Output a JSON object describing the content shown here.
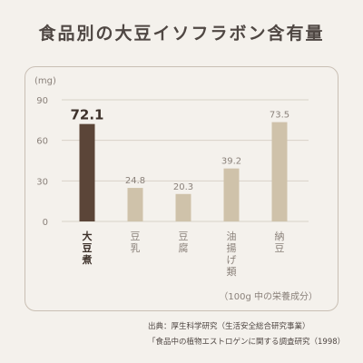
{
  "title": "食品別の大豆イソフラボン含有量",
  "note": "（100g 中の栄養成分）",
  "source": {
    "line1": "出典：厚生科学研究（生活安全総合研究事業）",
    "line2": "「食品中の植物エストロゲンに関する調査研究（1998）"
  },
  "colors": {
    "highlight": "#5b4538",
    "default": "#cfc2aa",
    "axis": "#8a817a",
    "grid": "#d9d2c9"
  },
  "chart_data": {
    "type": "bar",
    "unit": "(mg)",
    "categories": [
      "大豆煮",
      "豆乳",
      "豆腐",
      "油揚げ類",
      "納豆"
    ],
    "values": [
      72.1,
      24.8,
      20.3,
      39.2,
      73.5
    ],
    "value_labels": [
      "72.1",
      "24.8",
      "20.3",
      "39.2",
      "73.5"
    ],
    "highlight_index": 0,
    "yticks": [
      0,
      30,
      60,
      90
    ],
    "ylim": [
      0,
      90
    ]
  }
}
